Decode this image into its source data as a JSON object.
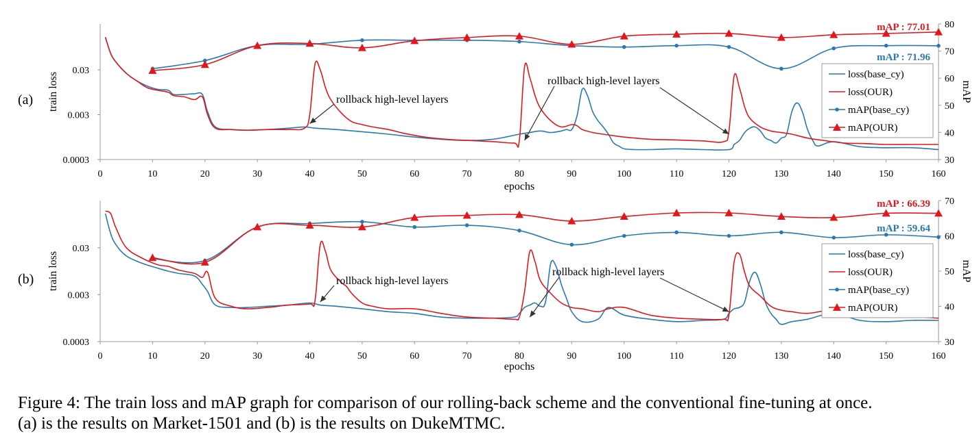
{
  "caption": {
    "line1": "Figure 4: The train loss and mAP graph for comparison of our rolling-back scheme and the conventional fine-tuning at once.",
    "line2": "(a) is the results on Market-1501 and (b) is the results on DukeMTMC."
  },
  "colors": {
    "base": "#2878b4",
    "ours": "#e0181c",
    "axis": "#999999"
  },
  "chart_data": [
    {
      "type": "line",
      "panel_label": "(a)",
      "xlabel": "epochs",
      "ylabel_left": "train loss",
      "ylabel_right": "mAP",
      "xlim": [
        0,
        160
      ],
      "x_ticks": [
        0,
        10,
        20,
        30,
        40,
        50,
        60,
        70,
        80,
        90,
        100,
        110,
        120,
        130,
        140,
        150,
        160
      ],
      "y_left_scale": "log",
      "y_left_range": [
        0.0003,
        0.3
      ],
      "y_left_ticks": [
        {
          "v": 0.03,
          "label": "0.03"
        },
        {
          "v": 0.003,
          "label": "0.003"
        },
        {
          "v": 0.0003,
          "label": "0.0003"
        }
      ],
      "y_right_range": [
        30,
        80
      ],
      "y_right_ticks": [
        30,
        40,
        50,
        60,
        70,
        80
      ],
      "legend": [
        "loss(base_cy)",
        "loss(OUR)",
        "mAP(base_cy)",
        "mAP(OUR)"
      ],
      "legend_position": "right",
      "end_labels": [
        {
          "series": "ours",
          "text": "mAP : 77.01",
          "value": 77.01
        },
        {
          "series": "base",
          "text": "mAP : 71.96",
          "value": 71.96
        }
      ],
      "annotations": [
        {
          "text": "rollback high-level layers",
          "arrow_to": [
            {
              "x": 40,
              "y": 0.0019
            }
          ]
        },
        {
          "text": "rollback high-level layers",
          "arrow_to": [
            {
              "x": 81,
              "y": 0.0008
            },
            {
              "x": 120,
              "y": 0.0011
            }
          ]
        }
      ],
      "series": [
        {
          "key": "base_loss",
          "name": "loss(base_cy)",
          "axis": "left",
          "x": [
            1,
            2,
            3,
            5,
            7,
            9,
            11,
            13,
            14,
            16,
            18,
            19.5,
            20.5,
            22,
            25,
            28,
            32,
            36,
            39,
            41,
            45,
            50,
            55,
            60,
            65,
            70,
            75,
            80,
            82,
            84,
            86,
            88,
            89,
            90,
            91,
            92,
            93,
            94,
            95,
            96,
            97,
            98,
            99,
            100,
            102,
            105,
            110,
            115,
            120,
            121,
            122,
            123,
            124,
            125,
            126,
            127,
            128,
            129,
            130,
            131,
            132,
            133,
            134,
            135,
            136,
            137,
            140,
            145,
            150,
            155,
            160
          ],
          "y": [
            0.16,
            0.07,
            0.045,
            0.025,
            0.017,
            0.013,
            0.011,
            0.0105,
            0.0085,
            0.0085,
            0.0088,
            0.0085,
            0.0035,
            0.0016,
            0.0014,
            0.00135,
            0.0014,
            0.0015,
            0.0016,
            0.0015,
            0.0014,
            0.00125,
            0.0011,
            0.00095,
            0.00085,
            0.0008,
            0.00085,
            0.0011,
            0.0012,
            0.0013,
            0.0012,
            0.0013,
            0.0014,
            0.0014,
            0.0028,
            0.011,
            0.008,
            0.0035,
            0.0022,
            0.0016,
            0.0011,
            0.0007,
            0.0006,
            0.00052,
            0.0005,
            0.0005,
            0.00052,
            0.0005,
            0.0005,
            0.00065,
            0.0008,
            0.0012,
            0.0015,
            0.0016,
            0.0013,
            0.0009,
            0.0008,
            0.0007,
            0.0009,
            0.0011,
            0.0035,
            0.0055,
            0.0035,
            0.0014,
            0.0008,
            0.0006,
            0.00075,
            0.00058,
            0.00055,
            0.00055,
            0.0005
          ]
        },
        {
          "key": "ours_loss",
          "name": "loss(OUR)",
          "axis": "left",
          "x": [
            1,
            2,
            3,
            5,
            7,
            9,
            11,
            13,
            14,
            16,
            18,
            19.5,
            20.5,
            22,
            25,
            28,
            32,
            36,
            39,
            40,
            41,
            42,
            43,
            44,
            46,
            48,
            50,
            52,
            55,
            58,
            62,
            66,
            70,
            75,
            79,
            80,
            81,
            82,
            83,
            84,
            86,
            88,
            90,
            91,
            92,
            94,
            96,
            100,
            105,
            110,
            115,
            119,
            120,
            121,
            122,
            123,
            124,
            126,
            128,
            130,
            132,
            135,
            138,
            142,
            146,
            150,
            155,
            160
          ],
          "y": [
            0.16,
            0.07,
            0.045,
            0.025,
            0.017,
            0.012,
            0.0105,
            0.0095,
            0.008,
            0.0075,
            0.0065,
            0.0075,
            0.003,
            0.0015,
            0.0014,
            0.00135,
            0.0014,
            0.0014,
            0.0015,
            0.003,
            0.04,
            0.03,
            0.012,
            0.0065,
            0.0033,
            0.0021,
            0.0018,
            0.0016,
            0.0014,
            0.00115,
            0.00095,
            0.00085,
            0.0008,
            0.00075,
            0.0007,
            0.0008,
            0.035,
            0.02,
            0.008,
            0.0042,
            0.0022,
            0.0016,
            0.0018,
            0.0017,
            0.0014,
            0.0012,
            0.0011,
            0.00095,
            0.00085,
            0.00082,
            0.00078,
            0.00075,
            0.0013,
            0.022,
            0.012,
            0.0045,
            0.0025,
            0.0016,
            0.0013,
            0.0012,
            0.0011,
            0.0009,
            0.0008,
            0.0007,
            0.00068,
            0.00065,
            0.00065,
            0.00065
          ]
        },
        {
          "key": "base_map",
          "name": "mAP(base_cy)",
          "axis": "right",
          "x": [
            10,
            20,
            30,
            40,
            50,
            60,
            70,
            80,
            90,
            100,
            110,
            120,
            130,
            140,
            150,
            160
          ],
          "y": [
            63.5,
            66.5,
            72,
            72.5,
            74,
            74,
            74,
            73.5,
            72,
            71.5,
            72,
            71.5,
            63.5,
            71,
            72,
            71.96
          ],
          "markers": [
            10,
            20,
            30,
            40,
            50,
            60,
            70,
            80,
            90,
            100,
            110,
            120,
            130,
            140,
            150,
            160
          ]
        },
        {
          "key": "ours_map",
          "name": "mAP(OUR)",
          "axis": "right",
          "x": [
            10,
            20,
            30,
            40,
            50,
            60,
            70,
            80,
            90,
            100,
            110,
            120,
            130,
            140,
            150,
            160
          ],
          "y": [
            62.8,
            65,
            72,
            72.8,
            71.2,
            73.8,
            75,
            75.5,
            72.5,
            75.5,
            76.2,
            76.5,
            75,
            76,
            76.5,
            77.01
          ],
          "markers": [
            10,
            20,
            30,
            40,
            50,
            60,
            70,
            80,
            90,
            100,
            110,
            120,
            130,
            140,
            150,
            160
          ]
        }
      ]
    },
    {
      "type": "line",
      "panel_label": "(b)",
      "xlabel": "epochs",
      "ylabel_left": "train loss",
      "ylabel_right": "mAP",
      "xlim": [
        0,
        160
      ],
      "x_ticks": [
        0,
        10,
        20,
        30,
        40,
        50,
        60,
        70,
        80,
        90,
        100,
        110,
        120,
        130,
        140,
        150,
        160
      ],
      "y_left_scale": "log",
      "y_left_range": [
        0.0003,
        0.3
      ],
      "y_left_ticks": [
        {
          "v": 0.03,
          "label": "0.03"
        },
        {
          "v": 0.003,
          "label": "0.003"
        },
        {
          "v": 0.0003,
          "label": "0.0003"
        }
      ],
      "y_right_range": [
        30,
        70
      ],
      "y_right_ticks": [
        30,
        40,
        50,
        60,
        70
      ],
      "legend": [
        "loss(base_cy)",
        "loss(OUR)",
        "mAP(base_cy)",
        "mAP(OUR)"
      ],
      "legend_position": "right",
      "end_labels": [
        {
          "series": "ours",
          "text": "mAP : 66.39",
          "value": 66.39
        },
        {
          "series": "base",
          "text": "mAP : 59.64",
          "value": 59.64
        }
      ],
      "annotations": [
        {
          "text": "rollback high-level layers",
          "arrow_to": [
            {
              "x": 42,
              "y": 0.0021
            }
          ]
        },
        {
          "text": "rollback high-level layers",
          "arrow_to": [
            {
              "x": 82,
              "y": 0.001
            },
            {
              "x": 120,
              "y": 0.0013
            }
          ]
        }
      ],
      "series": [
        {
          "key": "base_loss",
          "name": "loss(base_cy)",
          "axis": "left",
          "x": [
            1,
            2,
            3,
            5,
            8,
            11,
            13,
            15,
            18,
            19.5,
            20.5,
            22,
            25,
            28,
            32,
            36,
            40,
            42,
            45,
            50,
            55,
            60,
            65,
            70,
            75,
            79,
            80,
            81,
            82,
            83,
            84,
            85,
            86,
            87,
            88,
            89,
            90,
            92,
            95,
            97,
            100,
            105,
            110,
            115,
            119,
            120,
            121,
            122,
            123,
            124,
            125,
            126,
            127,
            128,
            129,
            130,
            132,
            135,
            140,
            145,
            150,
            155,
            160
          ],
          "y": [
            0.16,
            0.06,
            0.035,
            0.02,
            0.014,
            0.011,
            0.0095,
            0.0085,
            0.0075,
            0.005,
            0.0035,
            0.0018,
            0.0016,
            0.0016,
            0.0017,
            0.0018,
            0.002,
            0.0018,
            0.0017,
            0.0015,
            0.0013,
            0.0012,
            0.001,
            0.00095,
            0.00095,
            0.001,
            0.0012,
            0.0016,
            0.0018,
            0.002,
            0.0017,
            0.0021,
            0.014,
            0.012,
            0.005,
            0.0025,
            0.0013,
            0.0008,
            0.0009,
            0.0016,
            0.0011,
            0.0009,
            0.0008,
            0.00085,
            0.0009,
            0.0012,
            0.0015,
            0.0016,
            0.0021,
            0.006,
            0.009,
            0.005,
            0.002,
            0.0012,
            0.0009,
            0.0007,
            0.0008,
            0.0009,
            0.0012,
            0.00085,
            0.0008,
            0.00085,
            0.00085
          ]
        },
        {
          "key": "ours_loss",
          "name": "loss(OUR)",
          "axis": "left",
          "x": [
            1,
            2,
            3,
            5,
            8,
            11,
            13,
            15,
            18,
            19.5,
            20.5,
            22,
            25,
            28,
            32,
            36,
            40,
            41,
            42,
            43,
            44,
            46,
            47,
            48,
            50,
            52,
            55,
            60,
            65,
            70,
            75,
            79,
            80,
            81,
            82,
            83,
            84,
            86,
            88,
            90,
            92,
            95,
            97,
            100,
            105,
            110,
            115,
            119,
            120,
            121,
            122,
            123,
            124,
            126,
            128,
            130,
            132,
            135,
            140,
            145,
            150,
            155,
            160
          ],
          "y": [
            0.18,
            0.16,
            0.08,
            0.03,
            0.018,
            0.013,
            0.012,
            0.01,
            0.0085,
            0.007,
            0.009,
            0.0025,
            0.0017,
            0.0015,
            0.0016,
            0.0018,
            0.0019,
            0.0022,
            0.035,
            0.025,
            0.01,
            0.0055,
            0.0045,
            0.0032,
            0.002,
            0.0017,
            0.0015,
            0.0015,
            0.0012,
            0.001,
            0.00095,
            0.0009,
            0.001,
            0.0035,
            0.025,
            0.015,
            0.006,
            0.0032,
            0.002,
            0.0016,
            0.0015,
            0.0013,
            0.0015,
            0.0016,
            0.0011,
            0.00095,
            0.0009,
            0.0009,
            0.0011,
            0.015,
            0.022,
            0.009,
            0.0045,
            0.0028,
            0.0017,
            0.0014,
            0.0013,
            0.0012,
            0.0014,
            0.0011,
            0.001,
            0.001,
            0.00095
          ]
        },
        {
          "key": "base_map",
          "name": "mAP(base_cy)",
          "axis": "right",
          "x": [
            10,
            20,
            30,
            40,
            50,
            60,
            70,
            80,
            90,
            100,
            110,
            120,
            130,
            140,
            150,
            160
          ],
          "y": [
            53.5,
            53,
            62.5,
            63.5,
            64,
            62.5,
            63,
            61.5,
            57.5,
            60,
            61,
            60,
            61,
            59.5,
            60.3,
            59.64
          ],
          "markers": [
            10,
            20,
            30,
            40,
            50,
            60,
            70,
            80,
            90,
            100,
            110,
            120,
            130,
            140,
            150,
            160
          ]
        },
        {
          "key": "ours_map",
          "name": "mAP(OUR)",
          "axis": "right",
          "x": [
            10,
            20,
            30,
            40,
            50,
            60,
            70,
            80,
            90,
            100,
            110,
            120,
            130,
            140,
            150,
            160
          ],
          "y": [
            53.8,
            52.5,
            62.5,
            63,
            62.5,
            65.2,
            65.8,
            66,
            64.2,
            65.5,
            66.5,
            66.5,
            65.5,
            65.2,
            66.4,
            66.39
          ],
          "markers": [
            10,
            20,
            30,
            40,
            50,
            60,
            70,
            80,
            90,
            100,
            110,
            120,
            130,
            140,
            150,
            160
          ]
        }
      ]
    }
  ]
}
